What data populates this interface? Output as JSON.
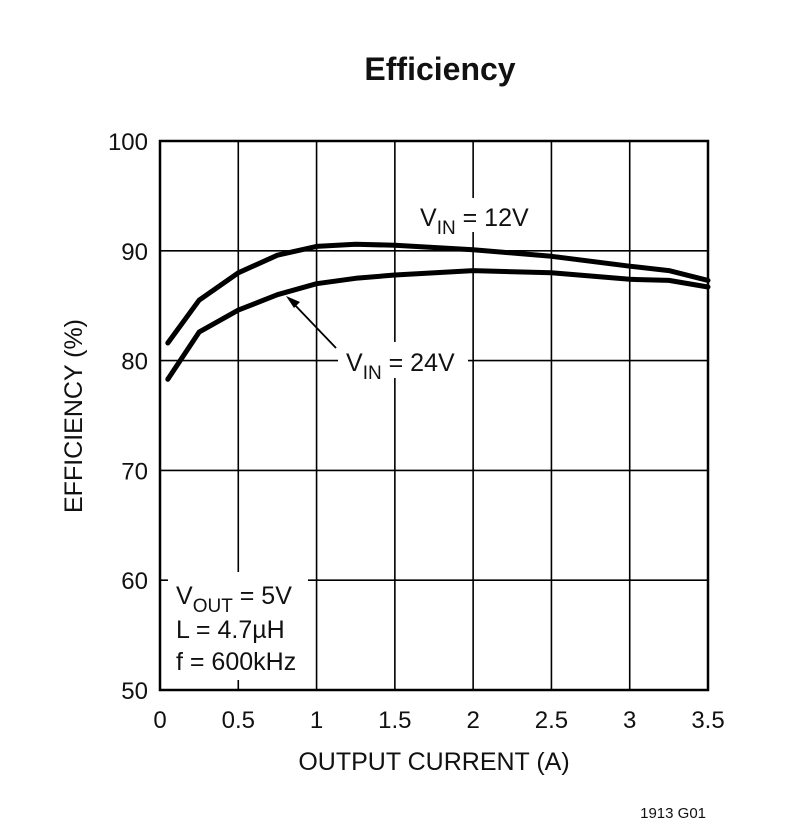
{
  "chart_data": {
    "type": "line",
    "title": "Efficiency",
    "x_label": "OUTPUT CURRENT (A)",
    "y_label": "EFFICIENCY (%)",
    "x": [
      0.05,
      0.25,
      0.5,
      0.75,
      1.0,
      1.25,
      1.5,
      2.0,
      2.5,
      3.0,
      3.25,
      3.5
    ],
    "series": [
      {
        "name": {
          "main": "V",
          "sub": "IN",
          "rest": " = 12V"
        },
        "color": "#000000",
        "values": [
          81.6,
          85.5,
          88.0,
          89.6,
          90.4,
          90.6,
          90.5,
          90.1,
          89.5,
          88.6,
          88.2,
          87.3
        ]
      },
      {
        "name": {
          "main": "V",
          "sub": "IN",
          "rest": " = 24V"
        },
        "color": "#000000",
        "values": [
          78.3,
          82.6,
          84.6,
          86.0,
          87.0,
          87.5,
          87.8,
          88.2,
          88.0,
          87.4,
          87.3,
          86.7
        ]
      }
    ],
    "xlim": [
      0,
      3.5
    ],
    "xticks": [
      0,
      0.5,
      1,
      1.5,
      2,
      2.5,
      3,
      3.5
    ],
    "ylim": [
      50,
      100
    ],
    "yticks": [
      50,
      60,
      70,
      80,
      90,
      100
    ],
    "grid": true,
    "conditions": {
      "vout": {
        "main": "V",
        "sub": "OUT",
        "rest": " = 5V"
      },
      "inductor": "L = 4.7µH",
      "frequency": "f = 600kHz"
    },
    "figure_id": "1913 G01"
  }
}
